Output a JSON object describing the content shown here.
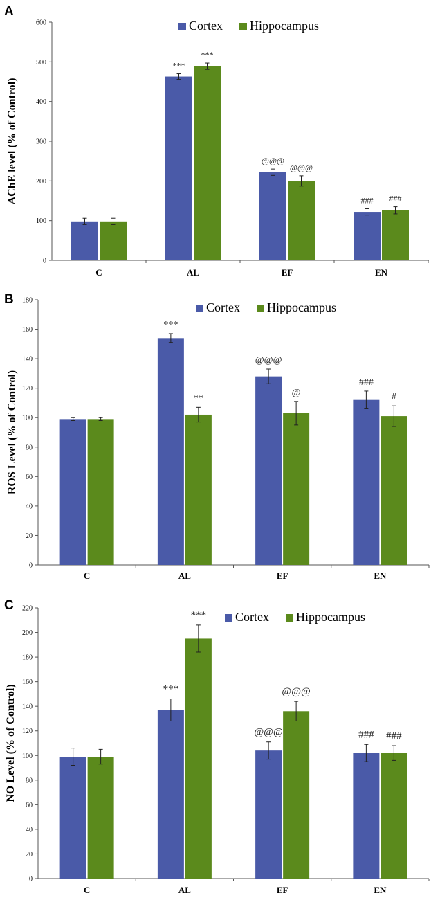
{
  "chart_data": [
    {
      "panel_label": "A",
      "type": "bar",
      "ylabel": "AChE level (% of Control)",
      "ylim": [
        0,
        600
      ],
      "yticks": [
        "0",
        "100",
        "200",
        "300",
        "400",
        "500",
        "600"
      ],
      "categories": [
        "C",
        "AL",
        "EF",
        "EN"
      ],
      "legend": "top-center",
      "series": [
        {
          "name": "Cortex",
          "values": [
            98,
            463,
            222,
            122
          ],
          "errors": [
            8,
            7,
            8,
            8
          ],
          "annotations": [
            "",
            "***",
            "@@@",
            "###"
          ]
        },
        {
          "name": "Hippocampus",
          "values": [
            98,
            489,
            200,
            126
          ],
          "errors": [
            8,
            8,
            13,
            9
          ],
          "annotations": [
            "",
            "***",
            "@@@",
            "###"
          ]
        }
      ]
    },
    {
      "panel_label": "B",
      "type": "bar",
      "ylabel": "ROS Level (% of Control)",
      "ylim": [
        0,
        180
      ],
      "yticks": [
        "0",
        "20",
        "40",
        "60",
        "80",
        "100",
        "120",
        "140",
        "160",
        "180"
      ],
      "categories": [
        "C",
        "AL",
        "EF",
        "EN"
      ],
      "legend": "top-center",
      "series": [
        {
          "name": "Cortex",
          "values": [
            99,
            154,
            128,
            112
          ],
          "errors": [
            1,
            3,
            5,
            6
          ],
          "annotations": [
            "",
            "***",
            "@@@",
            "###"
          ]
        },
        {
          "name": "Hippocampus",
          "values": [
            99,
            102,
            103,
            101
          ],
          "errors": [
            1,
            5,
            8,
            7
          ],
          "annotations": [
            "",
            "**",
            "@",
            "#"
          ]
        }
      ]
    },
    {
      "panel_label": "C",
      "type": "bar",
      "ylabel": "NO Level (% of Control)",
      "ylim": [
        0,
        220
      ],
      "yticks": [
        "0",
        "20",
        "40",
        "60",
        "80",
        "100",
        "120",
        "140",
        "160",
        "180",
        "200",
        "220"
      ],
      "categories": [
        "C",
        "AL",
        "EF",
        "EN"
      ],
      "legend": "top-center",
      "series": [
        {
          "name": "Cortex",
          "values": [
            99,
            137,
            104,
            102
          ],
          "errors": [
            7,
            9,
            7,
            7
          ],
          "annotations": [
            "",
            "***",
            "@@@",
            "###"
          ]
        },
        {
          "name": "Hippocampus",
          "values": [
            99,
            195,
            136,
            102
          ],
          "errors": [
            6,
            11,
            8,
            6
          ],
          "annotations": [
            "",
            "***",
            "@@@",
            "###"
          ]
        }
      ]
    }
  ],
  "colors": {
    "cortex": "#4a5aa8",
    "hippocampus": "#5b8a1c"
  }
}
